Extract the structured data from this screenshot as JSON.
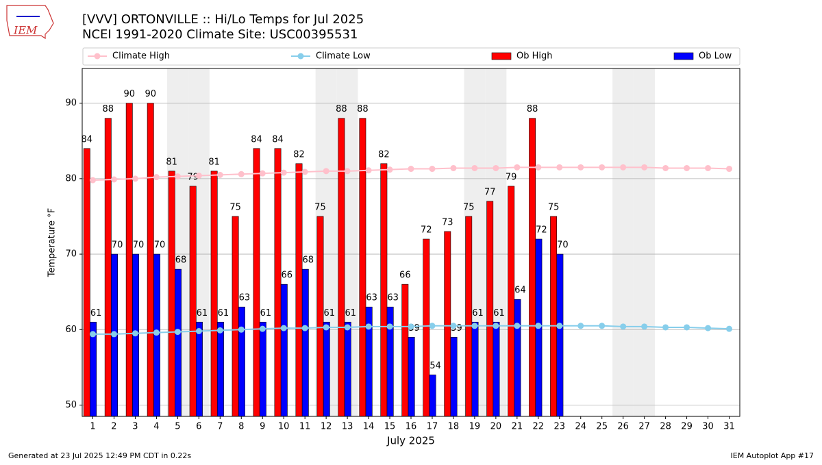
{
  "chart_data": {
    "type": "bar_line",
    "title": "[VVV] ORTONVILLE :: Hi/Lo Temps for Jul 2025",
    "subtitle": "NCEI 1991-2020 Climate Site: USC00395531",
    "logo_text": "IEM",
    "x_label": "July 2025",
    "y_label": "Temperature °F",
    "footer_left": "Generated at 23 Jul 2025 12:49 PM CDT in 0.22s",
    "footer_right": "IEM Autoplot App #17",
    "x": [
      1,
      2,
      3,
      4,
      5,
      6,
      7,
      8,
      9,
      10,
      11,
      12,
      13,
      14,
      15,
      16,
      17,
      18,
      19,
      20,
      21,
      22,
      23,
      24,
      25,
      26,
      27,
      28,
      29,
      30,
      31
    ],
    "xlim": [
      0.5,
      31.5
    ],
    "xticks": [
      1,
      2,
      3,
      4,
      5,
      6,
      7,
      8,
      9,
      10,
      11,
      12,
      13,
      14,
      15,
      16,
      17,
      18,
      19,
      20,
      21,
      22,
      23,
      24,
      25,
      26,
      27,
      28,
      29,
      30,
      31
    ],
    "ylim": [
      48.5,
      94.6
    ],
    "yticks": [
      50,
      60,
      70,
      80,
      90
    ],
    "grid": true,
    "shaded_days": [
      5,
      6,
      12,
      13,
      19,
      20,
      26,
      27
    ],
    "shade_color": "#eeeeee",
    "series": [
      {
        "name": "Climate High",
        "kind": "line",
        "color": "#ffc0cb",
        "values": [
          79.8,
          79.9,
          80.0,
          80.2,
          80.3,
          80.4,
          80.5,
          80.6,
          80.7,
          80.8,
          80.9,
          81.0,
          81.0,
          81.1,
          81.2,
          81.3,
          81.3,
          81.4,
          81.4,
          81.4,
          81.5,
          81.5,
          81.5,
          81.5,
          81.5,
          81.5,
          81.5,
          81.4,
          81.4,
          81.4,
          81.3
        ]
      },
      {
        "name": "Climate Low",
        "kind": "line",
        "color": "#87ceeb",
        "values": [
          59.4,
          59.4,
          59.5,
          59.6,
          59.7,
          59.8,
          59.9,
          60.0,
          60.1,
          60.2,
          60.2,
          60.3,
          60.3,
          60.4,
          60.4,
          60.4,
          60.5,
          60.5,
          60.5,
          60.5,
          60.5,
          60.5,
          60.5,
          60.5,
          60.5,
          60.4,
          60.4,
          60.3,
          60.3,
          60.2,
          60.1
        ]
      },
      {
        "name": "Ob High",
        "kind": "bar",
        "color": "#ff0000",
        "values": [
          84,
          88,
          90,
          90,
          81,
          79,
          81,
          75,
          84,
          84,
          82,
          75,
          88,
          88,
          82,
          66,
          72,
          73,
          75,
          77,
          79,
          88,
          75,
          null,
          null,
          null,
          null,
          null,
          null,
          null,
          null
        ]
      },
      {
        "name": "Ob Low",
        "kind": "bar",
        "color": "#0000ff",
        "values": [
          61,
          70,
          70,
          70,
          68,
          61,
          61,
          63,
          61,
          66,
          68,
          61,
          61,
          63,
          63,
          59,
          54,
          59,
          61,
          61,
          64,
          72,
          70,
          null,
          null,
          null,
          null,
          null,
          null,
          null,
          null
        ]
      }
    ]
  }
}
